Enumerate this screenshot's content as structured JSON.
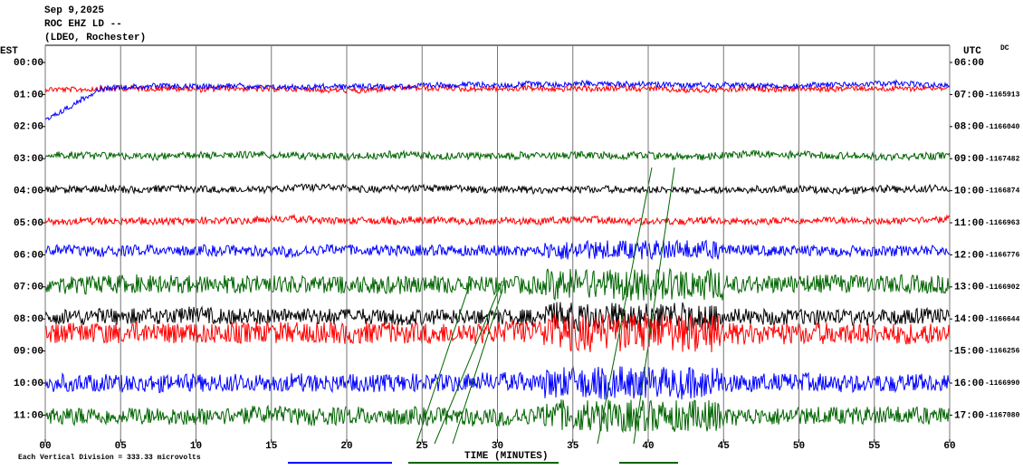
{
  "header": {
    "date": "Sep 9,2025",
    "station": "ROC EHZ LD --",
    "network": "(LDEO, Rochester)"
  },
  "left_axis": {
    "label": "EST",
    "times": [
      "00:00",
      "01:00",
      "02:00",
      "03:00",
      "04:00",
      "05:00",
      "06:00",
      "07:00",
      "08:00",
      "09:00",
      "10:00",
      "11:00"
    ]
  },
  "right_axis": {
    "label": "UTC",
    "dc_label": "DC",
    "times": [
      "06:00",
      "07:00",
      "08:00",
      "09:00",
      "10:00",
      "11:00",
      "12:00",
      "13:00",
      "14:00",
      "15:00",
      "16:00",
      "17:00"
    ],
    "dc_values": [
      null,
      "-1165913",
      "-1166040",
      "-1167482",
      "-1166874",
      "-1166963",
      "-1166776",
      "-1166902",
      "-1166644",
      "-1166256",
      "-1166990",
      "-1167080"
    ]
  },
  "x_axis": {
    "label": "TIME (MINUTES)",
    "xlim": [
      0,
      60
    ],
    "ticks": [
      {
        "value": 0,
        "label": "00"
      },
      {
        "value": 5,
        "label": "05"
      },
      10,
      15,
      20,
      25,
      30,
      35,
      40,
      45,
      50,
      55,
      60
    ]
  },
  "footer": {
    "scale_note": "Each Vertical Division =  333.33 microvolts"
  }
}
